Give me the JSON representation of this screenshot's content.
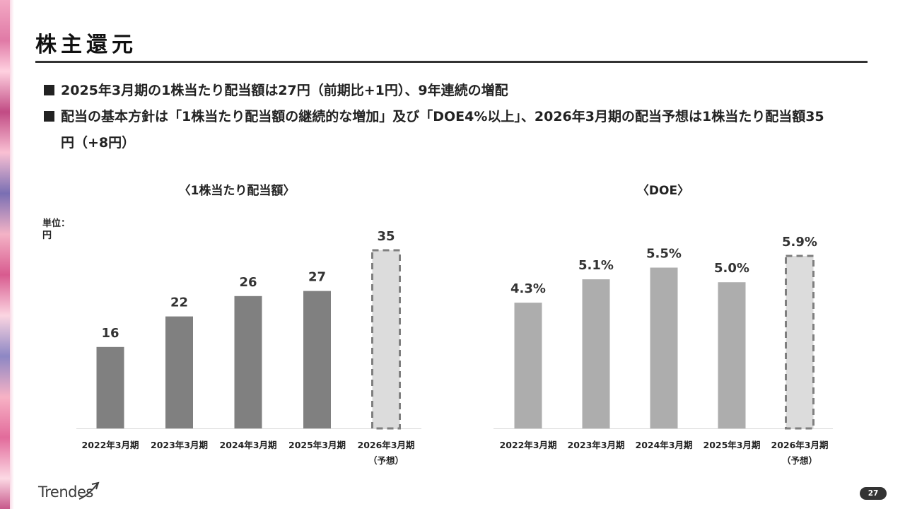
{
  "page": {
    "title": "株主還元",
    "page_number": "27"
  },
  "bullets": [
    "2025年3月期の1株当たり配当額は27円（前期比+1円）、9年連続の増配",
    "配当の基本方針は「1株当たり配当額の継続的な増加」及び「DOE4%以上」、2026年3月期の配当予想は1株当たり配当額35円（+8円）"
  ],
  "logo": {
    "text": "Trendes",
    "icon": "arrow-swoosh-icon"
  },
  "colors": {
    "actual_bar_dps": "#808080",
    "actual_bar_doe": "#adadad",
    "forecast_bar": "#dcdcdc",
    "forecast_border": "#7f7f7f",
    "text": "#222222"
  },
  "chart_data": [
    {
      "type": "bar",
      "title": "〈1株当たり配当額〉",
      "unit": "単位：\n円",
      "categories": [
        "2022年3月期",
        "2023年3月期",
        "2024年3月期",
        "2025年3月期",
        "2026年3月期"
      ],
      "category_notes": [
        "",
        "",
        "",
        "",
        "（予想）"
      ],
      "values": [
        16,
        22,
        26,
        27,
        35
      ],
      "value_labels": [
        "16",
        "22",
        "26",
        "27",
        "35"
      ],
      "forecast_index": 4,
      "ylim": [
        0,
        35
      ],
      "grid": false
    },
    {
      "type": "bar",
      "title": "〈DOE〉",
      "categories": [
        "2022年3月期",
        "2023年3月期",
        "2024年3月期",
        "2025年3月期",
        "2026年3月期"
      ],
      "category_notes": [
        "",
        "",
        "",
        "",
        "（予想）"
      ],
      "values": [
        4.3,
        5.1,
        5.5,
        5.0,
        5.9
      ],
      "value_labels": [
        "4.3%",
        "5.1%",
        "5.5%",
        "5.0%",
        "5.9%"
      ],
      "forecast_index": 4,
      "ylim": [
        0,
        5.9
      ],
      "grid": false
    }
  ]
}
